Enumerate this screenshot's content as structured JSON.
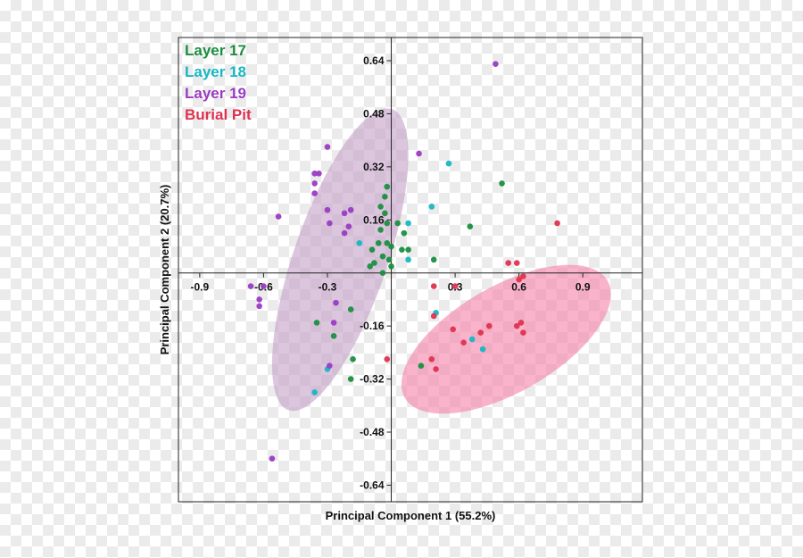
{
  "chart_data": {
    "type": "scatter",
    "xlabel": "Principal Component 1 (55.2%)",
    "ylabel": "Principal Component 2 (20.7%)",
    "xlim": [
      -1.0,
      1.18
    ],
    "ylim": [
      -0.69,
      0.71
    ],
    "x_ticks": [
      -0.9,
      -0.6,
      -0.3,
      0.3,
      0.6,
      0.9
    ],
    "x_tick_labels": [
      "-0.9",
      "-0.6",
      "-0.3",
      "0.3",
      "0.6",
      "0.9"
    ],
    "y_ticks": [
      0.64,
      0.48,
      0.32,
      0.16,
      -0.16,
      -0.32,
      -0.48,
      -0.64
    ],
    "y_tick_labels": [
      "0.64",
      "0.48",
      "0.32",
      "0.16",
      "-0.16",
      "-0.32",
      "-0.48",
      "-0.64"
    ],
    "legend_position": "top-left",
    "ellipses": [
      {
        "name": "Layer 19",
        "color": "#c7a3c9",
        "center": [
          -0.24,
          0.04
        ],
        "radii": [
          0.22,
          0.48
        ],
        "rotation_deg": 19
      },
      {
        "name": "Burial Pit",
        "color": "#f586ab",
        "center": [
          0.54,
          -0.2
        ],
        "radii": [
          0.55,
          0.16
        ],
        "rotation_deg": -30
      }
    ],
    "series": [
      {
        "name": "Layer 17",
        "color": "#1a8f3f",
        "points": [
          [
            -0.02,
            0.26
          ],
          [
            -0.03,
            0.23
          ],
          [
            -0.05,
            0.2
          ],
          [
            -0.03,
            0.18
          ],
          [
            -0.02,
            0.15
          ],
          [
            -0.05,
            0.13
          ],
          [
            0.03,
            0.15
          ],
          [
            0.06,
            0.12
          ],
          [
            -0.06,
            0.09
          ],
          [
            -0.02,
            0.09
          ],
          [
            0.0,
            0.08
          ],
          [
            0.05,
            0.07
          ],
          [
            -0.09,
            0.07
          ],
          [
            -0.04,
            0.05
          ],
          [
            -0.01,
            0.04
          ],
          [
            -0.08,
            0.03
          ],
          [
            -0.1,
            0.02
          ],
          [
            -0.04,
            0.0
          ],
          [
            0.0,
            0.02
          ],
          [
            0.08,
            0.07
          ],
          [
            0.2,
            0.04
          ],
          [
            0.37,
            0.14
          ],
          [
            0.52,
            0.27
          ],
          [
            -0.35,
            -0.15
          ],
          [
            -0.27,
            -0.19
          ],
          [
            -0.19,
            -0.11
          ],
          [
            -0.18,
            -0.26
          ],
          [
            -0.19,
            -0.32
          ],
          [
            0.14,
            -0.28
          ]
        ]
      },
      {
        "name": "Layer 18",
        "color": "#17b7c4",
        "points": [
          [
            0.27,
            0.33
          ],
          [
            0.19,
            0.2
          ],
          [
            0.08,
            0.15
          ],
          [
            0.08,
            0.04
          ],
          [
            -0.15,
            0.09
          ],
          [
            -0.3,
            -0.29
          ],
          [
            -0.36,
            -0.36
          ],
          [
            0.21,
            -0.12
          ],
          [
            0.38,
            -0.2
          ],
          [
            0.43,
            -0.23
          ]
        ]
      },
      {
        "name": "Layer 19",
        "color": "#9b3bc4",
        "points": [
          [
            0.49,
            0.63
          ],
          [
            -0.3,
            0.38
          ],
          [
            0.13,
            0.36
          ],
          [
            -0.36,
            0.3
          ],
          [
            -0.34,
            0.3
          ],
          [
            -0.36,
            0.27
          ],
          [
            -0.36,
            0.24
          ],
          [
            -0.53,
            0.17
          ],
          [
            -0.22,
            0.18
          ],
          [
            -0.19,
            0.19
          ],
          [
            -0.3,
            0.19
          ],
          [
            -0.29,
            0.15
          ],
          [
            -0.2,
            0.14
          ],
          [
            -0.22,
            0.12
          ],
          [
            -0.6,
            -0.04
          ],
          [
            -0.66,
            -0.04
          ],
          [
            -0.62,
            -0.08
          ],
          [
            -0.62,
            -0.1
          ],
          [
            -0.26,
            -0.09
          ],
          [
            -0.27,
            -0.15
          ],
          [
            -0.29,
            -0.28
          ],
          [
            -0.56,
            -0.56
          ]
        ]
      },
      {
        "name": "Burial Pit",
        "color": "#e03250",
        "points": [
          [
            0.78,
            0.15
          ],
          [
            0.55,
            0.03
          ],
          [
            0.59,
            0.03
          ],
          [
            0.6,
            -0.02
          ],
          [
            0.62,
            -0.01
          ],
          [
            0.3,
            -0.04
          ],
          [
            0.2,
            -0.04
          ],
          [
            0.2,
            -0.13
          ],
          [
            0.29,
            -0.17
          ],
          [
            0.42,
            -0.18
          ],
          [
            0.46,
            -0.16
          ],
          [
            0.59,
            -0.16
          ],
          [
            0.61,
            -0.15
          ],
          [
            0.62,
            -0.18
          ],
          [
            0.19,
            -0.26
          ],
          [
            0.21,
            -0.29
          ],
          [
            0.34,
            -0.21
          ],
          [
            -0.02,
            -0.26
          ]
        ]
      }
    ]
  }
}
